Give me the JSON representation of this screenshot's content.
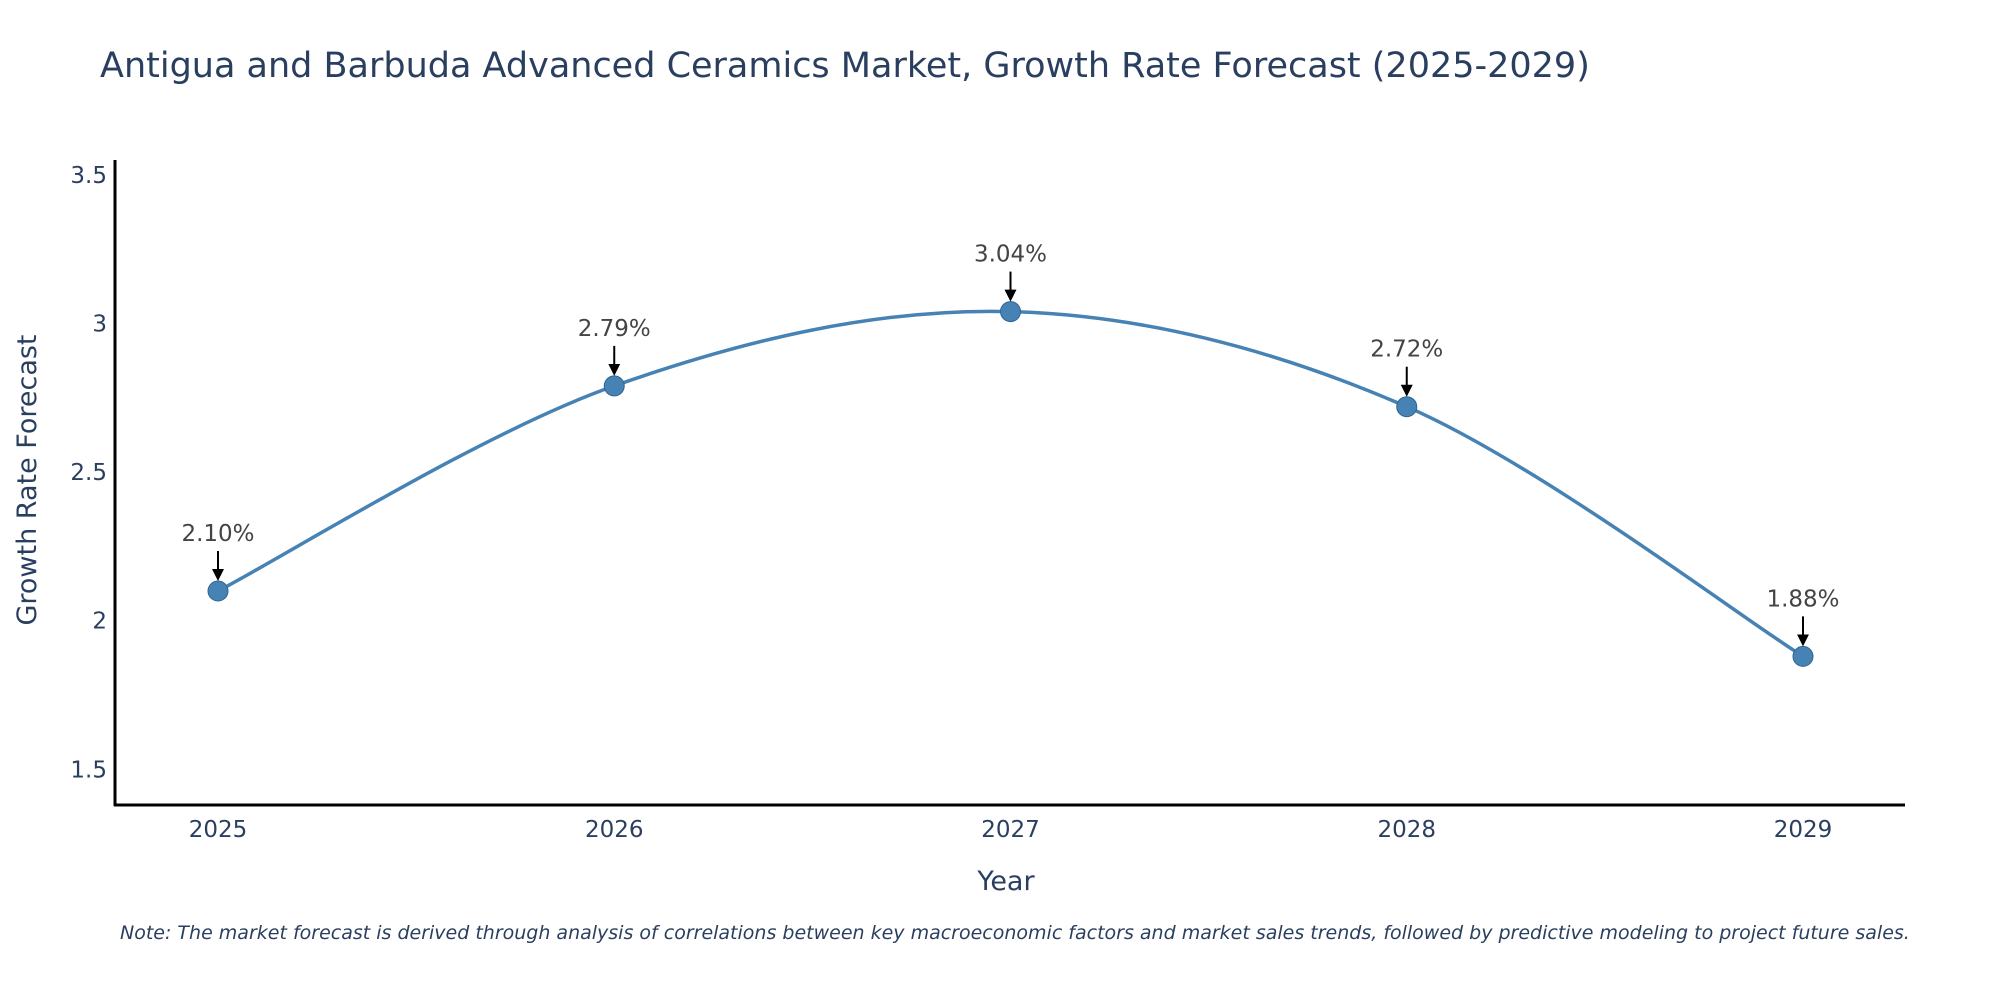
{
  "chart_data": {
    "type": "line",
    "title": "Antigua and Barbuda Advanced Ceramics Market, Growth Rate Forecast (2025-2029)",
    "xlabel": "Year",
    "ylabel": "Growth Rate Forecast",
    "x": [
      "2025",
      "2026",
      "2027",
      "2028",
      "2029"
    ],
    "values": [
      2.1,
      2.79,
      3.04,
      2.72,
      1.88
    ],
    "data_labels": [
      "2.10%",
      "2.79%",
      "3.04%",
      "2.72%",
      "1.88%"
    ],
    "yticks": [
      1.5,
      2,
      2.5,
      3,
      3.5
    ],
    "ytick_labels": [
      "1.5",
      "2",
      "2.5",
      "3",
      "3.5"
    ],
    "ylim": [
      1.38,
      3.55
    ],
    "line_color": "#4682b4",
    "grid": false,
    "note": "Note: The market forecast is derived through analysis of correlations between key macroeconomic factors and market sales trends, followed by predictive modeling to project future sales."
  }
}
